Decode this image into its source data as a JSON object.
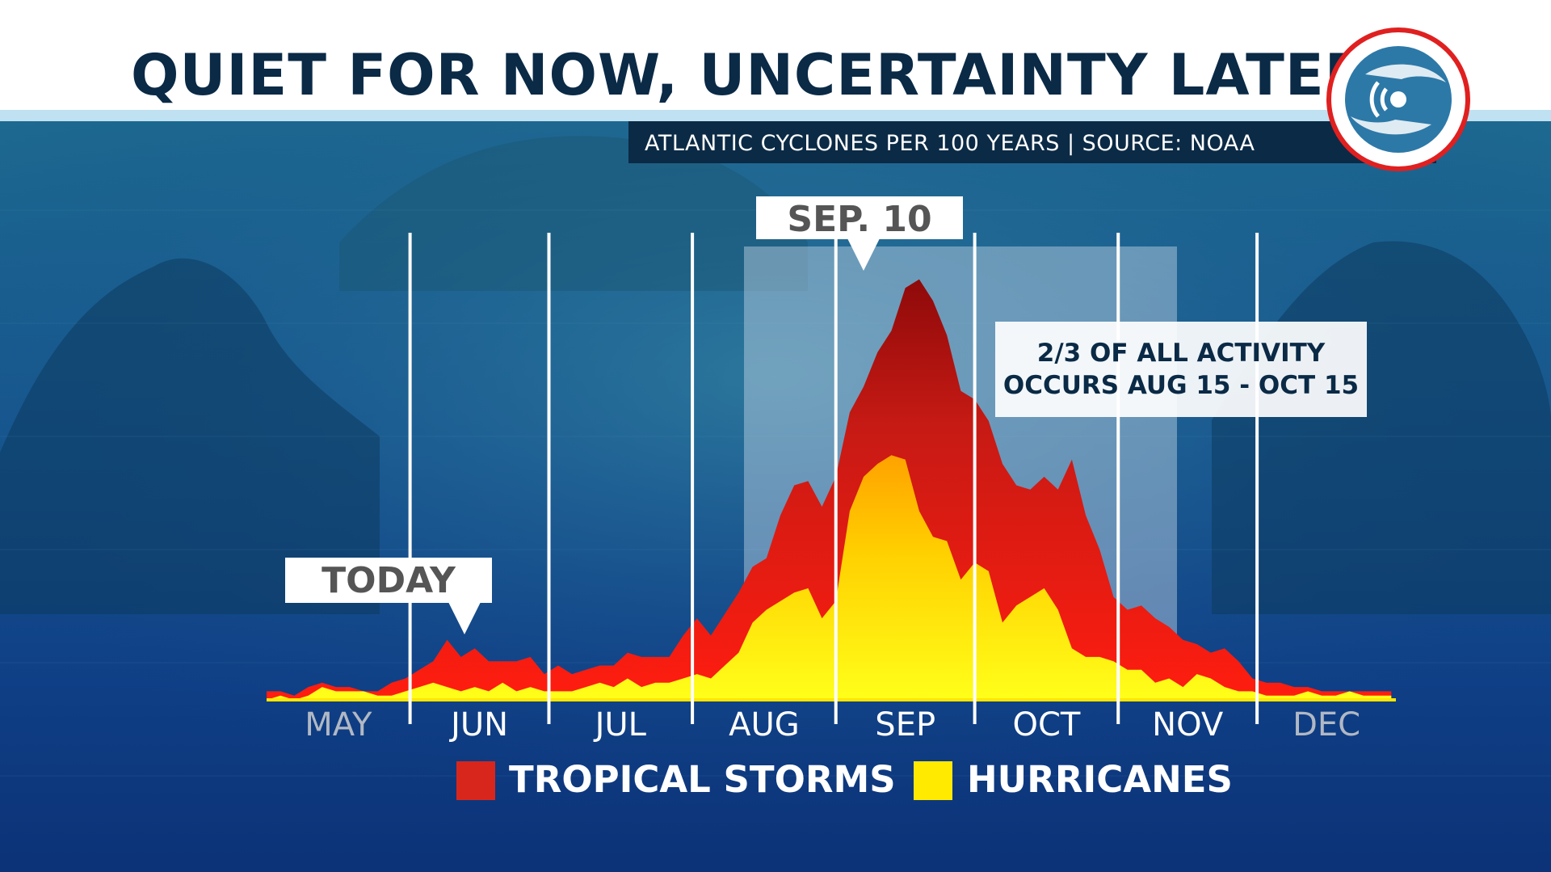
{
  "title": "QUIET FOR NOW, UNCERTAINTY LATER",
  "subtitle": "ATLANTIC CYCLONES PER 100 YEARS | SOURCE: NOAA",
  "colors": {
    "tropical_storms": "#d9261c",
    "hurricanes": "#ffea00",
    "title_text": "#0a2a46",
    "background": "#0f3f86",
    "logo_ring": "#e02020"
  },
  "chart_data": {
    "type": "area",
    "title": "QUIET FOR NOW, UNCERTAINTY LATER",
    "subtitle": "ATLANTIC CYCLONES PER 100 YEARS | SOURCE: NOAA",
    "months": [
      "MAY",
      "JUN",
      "JUL",
      "AUG",
      "SEP",
      "OCT",
      "NOV",
      "DEC"
    ],
    "x_unit": "day of year",
    "xlim": [
      121,
      365
    ],
    "ylim": [
      0,
      100
    ],
    "x": [
      121,
      124,
      127,
      130,
      133,
      136,
      139,
      142,
      145,
      148,
      151,
      154,
      157,
      160,
      163,
      166,
      169,
      172,
      175,
      178,
      181,
      184,
      187,
      190,
      193,
      196,
      199,
      202,
      205,
      208,
      211,
      214,
      217,
      220,
      223,
      226,
      229,
      232,
      235,
      238,
      241,
      244,
      247,
      250,
      253,
      256,
      259,
      262,
      265,
      268,
      271,
      274,
      277,
      280,
      283,
      286,
      289,
      292,
      295,
      298,
      301,
      304,
      307,
      310,
      313,
      316,
      319,
      322,
      325,
      328,
      331,
      334,
      337,
      340,
      343,
      346,
      349,
      352,
      355,
      358,
      361,
      364
    ],
    "series": [
      {
        "name": "TROPICAL STORMS",
        "values": [
          2,
          2,
          1,
          3,
          4,
          3,
          3,
          2,
          2,
          4,
          5,
          7,
          9,
          14,
          10,
          12,
          9,
          9,
          9,
          10,
          6,
          8,
          6,
          7,
          8,
          8,
          11,
          10,
          10,
          10,
          15,
          19,
          15,
          20,
          25,
          31,
          33,
          43,
          50,
          51,
          45,
          52,
          67,
          73,
          81,
          86,
          96,
          98,
          93,
          85,
          72,
          70,
          65,
          55,
          50,
          49,
          52,
          49,
          56,
          43,
          35,
          24,
          21,
          22,
          19,
          17,
          14,
          13,
          11,
          12,
          9,
          5,
          4,
          4,
          3,
          3,
          2,
          2,
          2,
          2,
          2,
          2
        ]
      },
      {
        "name": "HURRICANES",
        "values": [
          0,
          1,
          0,
          1,
          3,
          2,
          2,
          2,
          1,
          1,
          2,
          3,
          4,
          3,
          2,
          3,
          2,
          4,
          2,
          3,
          2,
          2,
          2,
          3,
          4,
          3,
          5,
          3,
          4,
          4,
          5,
          6,
          5,
          8,
          11,
          18,
          21,
          23,
          25,
          26,
          19,
          23,
          44,
          52,
          55,
          57,
          56,
          44,
          38,
          37,
          28,
          32,
          30,
          18,
          22,
          24,
          26,
          21,
          12,
          10,
          10,
          9,
          7,
          7,
          4,
          5,
          3,
          6,
          5,
          3,
          2,
          2,
          1,
          1,
          1,
          2,
          1,
          1,
          2,
          1,
          1,
          1
        ]
      }
    ],
    "annotations": [
      "TODAY",
      "SEP. 10",
      "2/3 OF ALL ACTIVITY",
      "OCCURS AUG 15 - OCT 15"
    ],
    "legend": {
      "placement": "bottom",
      "items": [
        "TROPICAL STORMS",
        "HURRICANES"
      ]
    },
    "grid": "vertical month dividers"
  },
  "callouts": {
    "today": "TODAY",
    "peak": "SEP. 10",
    "activity_line1": "2/3 OF ALL ACTIVITY",
    "activity_line2": "OCCURS AUG 15 - OCT 15"
  },
  "legend": {
    "tropical_storms": "TROPICAL STORMS",
    "hurricanes": "HURRICANES"
  },
  "logo": {
    "icon": "hurricane-radar-logo-icon"
  }
}
